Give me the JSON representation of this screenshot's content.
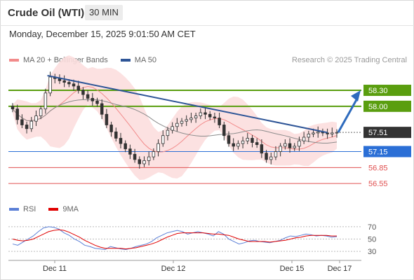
{
  "header": {
    "title": "Crude Oil (WTI)",
    "timeframe": "30 MIN",
    "datetime": "Monday, December 15, 2025 9:01:50 AM CET"
  },
  "legend": {
    "items": [
      {
        "label": "MA 20 + Bollinger Bands",
        "color": "#f28b8b"
      },
      {
        "label": "MA 50",
        "color": "#2e5597"
      }
    ],
    "copyright": "Research © 2025 Trading Central"
  },
  "rsi_legend": {
    "items": [
      {
        "label": "RSI",
        "color": "#5b7fd6"
      },
      {
        "label": "9MA",
        "color": "#e00000"
      }
    ]
  },
  "chart_data": [
    {
      "type": "candlestick",
      "title": "",
      "y_range": [
        56.25,
        58.55
      ],
      "x_tick_labels": [
        "Dec 11",
        "Dec 12",
        "Dec 15",
        "Dec 17"
      ],
      "levels": [
        {
          "value": 58.3,
          "label": "58.30",
          "color": "#5a9e0f",
          "style": "resistance"
        },
        {
          "value": 58.0,
          "label": "58.00",
          "color": "#5a9e0f",
          "style": "resistance"
        },
        {
          "value": 57.51,
          "label": "57.51",
          "color": "#333333",
          "style": "last-price"
        },
        {
          "value": 57.15,
          "label": "57.15",
          "color": "#2b6fd6",
          "style": "pivot"
        },
        {
          "value": 56.85,
          "label": "56.85",
          "color": "#e05050",
          "style": "support"
        },
        {
          "value": 56.55,
          "label": "56.55",
          "color": "#e05050",
          "style": "support"
        }
      ],
      "closes": [
        57.95,
        57.75,
        57.65,
        57.58,
        57.72,
        57.82,
        57.95,
        58.25,
        58.55,
        58.52,
        58.48,
        58.45,
        58.42,
        58.38,
        58.3,
        58.22,
        58.15,
        58.1,
        58.05,
        57.85,
        57.65,
        57.52,
        57.4,
        57.3,
        57.2,
        57.1,
        57.0,
        56.92,
        56.98,
        57.05,
        57.15,
        57.3,
        57.45,
        57.55,
        57.62,
        57.68,
        57.72,
        57.75,
        57.78,
        57.82,
        57.88,
        57.85,
        57.8,
        57.78,
        57.65,
        57.45,
        57.3,
        57.25,
        57.3,
        57.35,
        57.4,
        57.32,
        57.28,
        57.12,
        57.0,
        57.05,
        57.15,
        57.25,
        57.3,
        57.22,
        57.25,
        57.35,
        57.42,
        57.48,
        57.5,
        57.52,
        57.5,
        57.48,
        57.5,
        57.51
      ]
    },
    {
      "type": "line",
      "title": "RSI",
      "y_range": [
        20,
        80
      ],
      "y_ticks": [
        70,
        50,
        30
      ],
      "series": [
        {
          "name": "RSI",
          "values": [
            42,
            40,
            45,
            50,
            55,
            62,
            68,
            70,
            69,
            66,
            60,
            56,
            50,
            46,
            40,
            38,
            35,
            34,
            33,
            38,
            36,
            34,
            33,
            35,
            38,
            40,
            42,
            46,
            52,
            56,
            60,
            62,
            64,
            62,
            58,
            60,
            62,
            60,
            58,
            55,
            62,
            58,
            50,
            46,
            42,
            44,
            47,
            48,
            46,
            45,
            44,
            46,
            48,
            52,
            55,
            54,
            56,
            58,
            57,
            55,
            56,
            55,
            53,
            54
          ]
        },
        {
          "name": "9MA",
          "values": [
            50,
            48,
            47,
            48,
            50,
            54,
            58,
            62,
            64,
            65,
            64,
            61,
            57,
            53,
            48,
            44,
            40,
            37,
            35,
            35,
            35,
            35,
            34,
            35,
            36,
            38,
            40,
            42,
            45,
            49,
            53,
            56,
            59,
            60,
            60,
            60,
            60,
            60,
            59,
            58,
            58,
            57,
            56,
            53,
            50,
            48,
            46,
            46,
            46,
            46,
            45,
            46,
            47,
            48,
            50,
            52,
            53,
            55,
            56,
            56,
            56,
            56,
            55,
            55
          ]
        }
      ]
    }
  ]
}
